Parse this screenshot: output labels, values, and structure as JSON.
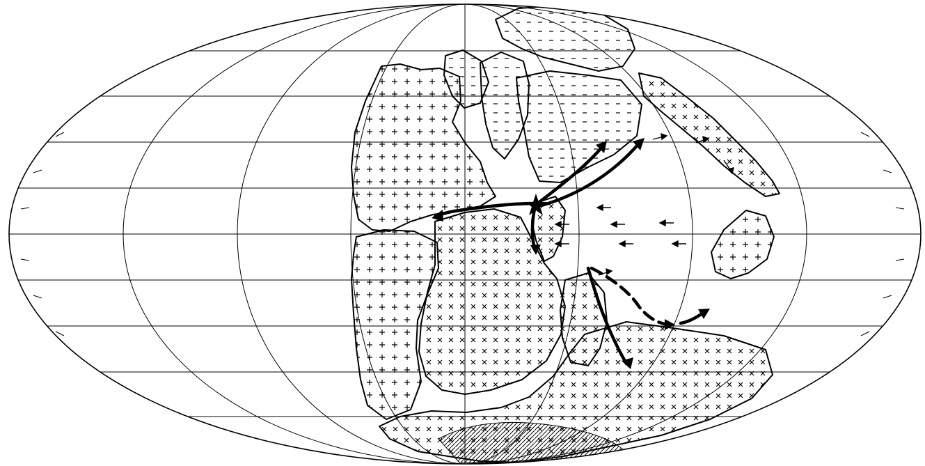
{
  "map": {
    "projection": "mollweide",
    "style": "black-and-white line drawing",
    "ink_color": "#000000",
    "background_color": "#ffffff",
    "graticule": {
      "latitude_lines": 9,
      "meridians": 9,
      "edge_ticks": true
    },
    "regions": [
      {
        "name": "north-america",
        "pattern": "plus"
      },
      {
        "name": "greenland",
        "pattern": "dash"
      },
      {
        "name": "europe",
        "pattern": "dash"
      },
      {
        "name": "asia",
        "pattern": "dash"
      },
      {
        "name": "south-america",
        "pattern": "plus"
      },
      {
        "name": "africa",
        "pattern": "cross"
      },
      {
        "name": "arabia-india",
        "pattern": "cross"
      },
      {
        "name": "east-asian-terranes",
        "pattern": "cross"
      },
      {
        "name": "australia",
        "pattern": "plus"
      },
      {
        "name": "antarctica",
        "pattern": "cross"
      }
    ],
    "features": {
      "star_marker": true,
      "ice_cap_hatching": true,
      "small_flow_arrows": 11
    },
    "migration_arrows": [
      {
        "id": "to-north-america",
        "style": "solid"
      },
      {
        "id": "to-northeast-asia-1",
        "style": "solid"
      },
      {
        "id": "to-northeast-asia-2",
        "style": "solid"
      },
      {
        "id": "to-africa-south",
        "style": "solid"
      },
      {
        "id": "to-southern-africa",
        "style": "solid"
      },
      {
        "id": "to-india-dashed",
        "style": "dashed"
      },
      {
        "id": "to-australia",
        "style": "solid"
      }
    ]
  }
}
